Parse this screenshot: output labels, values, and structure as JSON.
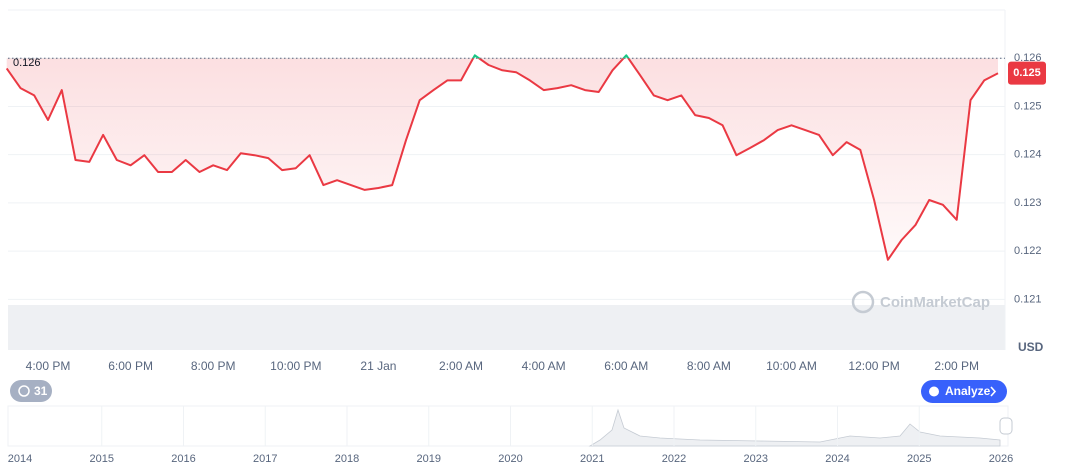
{
  "chart_data": {
    "type": "line",
    "categories": [
      null,
      null,
      null,
      "4:00 PM",
      null,
      null,
      null,
      null,
      null,
      "6:00 PM",
      null,
      null,
      null,
      null,
      null,
      "8:00 PM",
      null,
      null,
      null,
      null,
      null,
      "10:00 PM",
      null,
      null,
      null,
      null,
      null,
      "21 Jan",
      null,
      null,
      null,
      null,
      null,
      "2:00 AM",
      null,
      null,
      null,
      null,
      null,
      "4:00 AM",
      null,
      null,
      null,
      null,
      null,
      "6:00 AM",
      null,
      null,
      null,
      null,
      null,
      "8:00 AM",
      null,
      null,
      null,
      null,
      null,
      "10:00 AM",
      null,
      null,
      null,
      null,
      null,
      "12:00 PM",
      null,
      null,
      null,
      null,
      null,
      "2:00 PM",
      null,
      null,
      null
    ],
    "values": [
      0.12579,
      0.12538,
      0.12523,
      0.12472,
      0.12534,
      0.12389,
      0.12385,
      0.12441,
      0.12389,
      0.12378,
      0.12399,
      0.12364,
      0.12364,
      0.12389,
      0.12364,
      0.12378,
      0.12368,
      0.12403,
      0.12399,
      0.12393,
      0.12368,
      0.12372,
      0.12399,
      0.12337,
      0.12347,
      0.12337,
      0.12327,
      0.12331,
      0.12337,
      0.1243,
      0.12513,
      0.12534,
      0.12554,
      0.12554,
      0.12606,
      0.12586,
      0.12575,
      0.12571,
      0.12554,
      0.12534,
      0.12538,
      0.12544,
      0.12534,
      0.1253,
      0.12575,
      0.12606,
      0.12565,
      0.12523,
      0.12513,
      0.12523,
      0.12482,
      0.12476,
      0.12461,
      0.12399,
      0.12414,
      0.1243,
      0.12451,
      0.12461,
      0.12451,
      0.12441,
      0.12399,
      0.12426,
      0.1241,
      0.12306,
      0.12182,
      0.12223,
      0.12254,
      0.12306,
      0.12296,
      0.12265,
      0.12513,
      0.12554,
      0.12569
    ],
    "color": "#ea3943",
    "up_color": "#16c784",
    "reference_value": 0.126,
    "last_price": 0.125,
    "ylim": [
      0.11995,
      0.127
    ],
    "yticks": [
      0.126,
      0.125,
      0.124,
      0.123,
      0.122,
      0.121
    ],
    "grid": true,
    "unit": "USD",
    "watermark": "CoinMarketCap"
  },
  "controls": {
    "history_badge": 31,
    "analyze_button": "Analyze"
  },
  "navigator": {
    "years": [
      "2014",
      "2015",
      "2016",
      "2017",
      "2018",
      "2019",
      "2020",
      "2021",
      "2022",
      "2023",
      "2024",
      "2025",
      "2026"
    ]
  }
}
